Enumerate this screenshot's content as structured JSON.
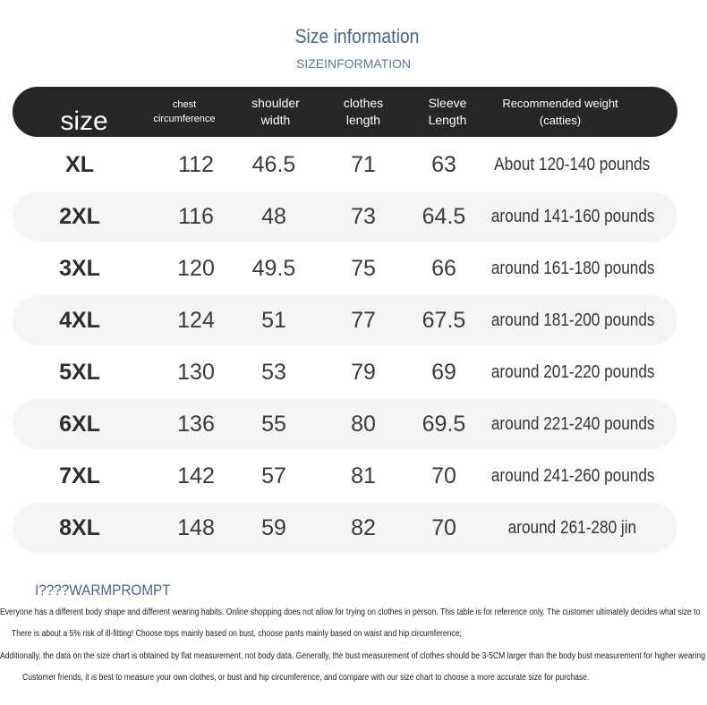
{
  "title": "Size information",
  "subtitle": "SIZEINFORMATION",
  "headers": {
    "size": "size",
    "chest": "chest\ncircumference",
    "shoulder": "shoulder\nwidth",
    "length": "clothes\nlength",
    "sleeve": "Sleeve\nLength",
    "weight": "Recommended weight\n(catties)"
  },
  "rows": [
    {
      "size": "XL",
      "chest": "112",
      "shoulder": "46.5",
      "length": "71",
      "sleeve": "63",
      "weight": "About 120-140 pounds"
    },
    {
      "size": "2XL",
      "chest": "116",
      "shoulder": "48",
      "length": "73",
      "sleeve": "64.5",
      "weight": "around 141-160 pounds"
    },
    {
      "size": "3XL",
      "chest": "120",
      "shoulder": "49.5",
      "length": "75",
      "sleeve": "66",
      "weight": "around 161-180 pounds"
    },
    {
      "size": "4XL",
      "chest": "124",
      "shoulder": "51",
      "length": "77",
      "sleeve": "67.5",
      "weight": "around 181-200 pounds"
    },
    {
      "size": "5XL",
      "chest": "130",
      "shoulder": "53",
      "length": "79",
      "sleeve": "69",
      "weight": "around 201-220 pounds"
    },
    {
      "size": "6XL",
      "chest": "136",
      "shoulder": "55",
      "length": "80",
      "sleeve": "69.5",
      "weight": "around 221-240 pounds"
    },
    {
      "size": "7XL",
      "chest": "142",
      "shoulder": "57",
      "length": "81",
      "sleeve": "70",
      "weight": "around 241-260 pounds"
    },
    {
      "size": "8XL",
      "chest": "148",
      "shoulder": "59",
      "length": "82",
      "sleeve": "70",
      "weight": "around 261-280 jin"
    }
  ],
  "warm_prompt": "I????WARMPROMPT",
  "notes": [
    "Everyone has a different body shape and different wearing habits. Online shopping does not allow for trying on clothes in person. This table is for reference only. The customer ultimately decides what size to",
    "There is about a 5% risk of ill-fitting! Choose tops mainly based on bust, choose pants mainly based on waist and hip circumference;",
    "Additionally, the data on the size chart is obtained by flat measurement, not body data. Generally, the bust measurement of clothes should be 3-5CM larger than the body bust measurement for higher wearing",
    "Customer friends, it is best to measure your own clothes, or bust and hip circumference, and compare with our size chart to choose a more accurate size for purchase."
  ]
}
